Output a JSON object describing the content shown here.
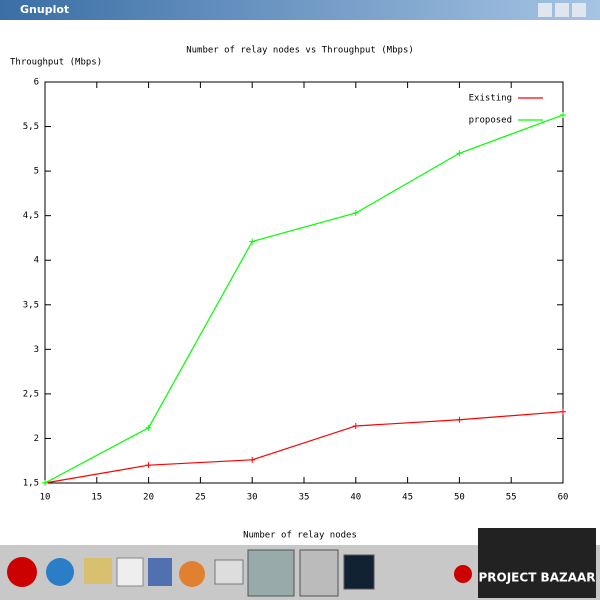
{
  "window": {
    "title": "Gnuplot"
  },
  "taskbar": {
    "logo": "PROJECT BAZAAR"
  },
  "chart_data": {
    "type": "line",
    "title": "Number of relay nodes vs Throughput (Mbps)",
    "x_label": "Number of relay nodes",
    "y_label": "Throughput (Mbps)",
    "x": [
      10,
      20,
      30,
      40,
      50,
      60
    ],
    "series": [
      {
        "name": "Existing",
        "color": "#ff0000",
        "values": [
          1.5,
          1.7,
          1.76,
          2.14,
          2.21,
          2.3
        ]
      },
      {
        "name": "proposed",
        "color": "#00ff00",
        "values": [
          1.5,
          2.12,
          4.21,
          4.53,
          5.2,
          5.63
        ]
      }
    ],
    "xlim": [
      10,
      60
    ],
    "xticks": [
      10,
      15,
      20,
      25,
      30,
      35,
      40,
      45,
      50,
      55,
      60
    ],
    "ylim": [
      1.5,
      6
    ],
    "yticks": [
      {
        "value": 1.5,
        "label": "1,5"
      },
      2,
      {
        "value": 2.5,
        "label": "2,5"
      },
      3,
      {
        "value": 3.5,
        "label": "3,5"
      },
      4,
      {
        "value": 4.5,
        "label": "4,5"
      },
      5,
      {
        "value": 5.5,
        "label": "5,5"
      },
      6
    ],
    "legend": "top-right"
  }
}
